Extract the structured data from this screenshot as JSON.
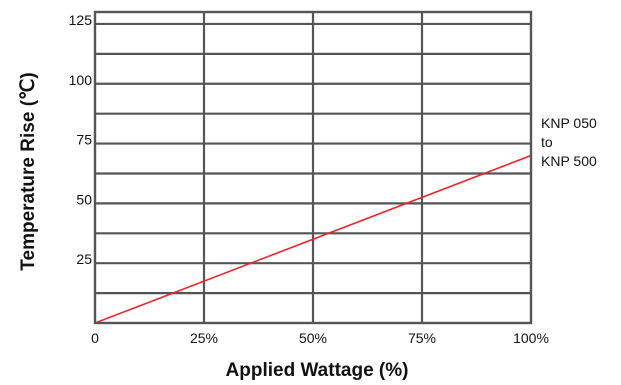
{
  "chart_data": {
    "type": "line",
    "xlabel": "Applied Wattage (%)",
    "ylabel": "Temperature Rise (℃)",
    "xlim": [
      0,
      100
    ],
    "ylim": [
      0,
      130
    ],
    "grid": true,
    "x_ticks": [
      {
        "value": 0,
        "label": "0"
      },
      {
        "value": 25,
        "label": "25%"
      },
      {
        "value": 50,
        "label": "50%"
      },
      {
        "value": 75,
        "label": "75%"
      },
      {
        "value": 100,
        "label": "100%"
      }
    ],
    "y_ticks": [
      {
        "value": 25,
        "label": "25"
      },
      {
        "value": 50,
        "label": "50"
      },
      {
        "value": 75,
        "label": "75"
      },
      {
        "value": 100,
        "label": "100"
      },
      {
        "value": 125,
        "label": "125"
      }
    ],
    "y_grid_values": [
      12.5,
      25,
      37.5,
      50,
      62.5,
      75,
      87.5,
      100,
      112.5,
      125
    ],
    "series": [
      {
        "name": "KNP 050 to KNP 500",
        "label_lines": [
          "KNP 050",
          "to",
          "KNP 500"
        ],
        "color": "#e8262c",
        "x": [
          0,
          100
        ],
        "y": [
          0,
          70
        ]
      }
    ]
  }
}
